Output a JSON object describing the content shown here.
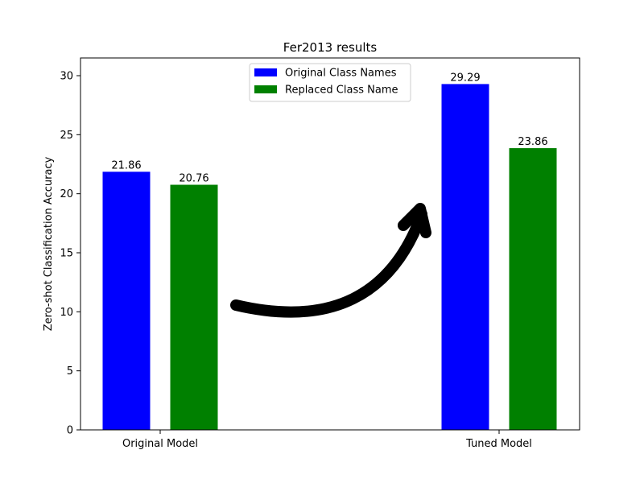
{
  "chart_data": {
    "type": "bar",
    "title": "Fer2013 results",
    "xlabel": "",
    "ylabel": "Zero-shot Classification Accuracy",
    "categories": [
      "Original Model",
      "Tuned Model"
    ],
    "series": [
      {
        "name": "Original Class Names",
        "values": [
          21.86,
          29.29
        ],
        "labels": [
          "21.86",
          "29.29"
        ],
        "color": "#0000ff"
      },
      {
        "name": "Replaced Class Name",
        "values": [
          20.76,
          23.86
        ],
        "labels": [
          "20.76",
          "23.86"
        ],
        "color": "#008000"
      }
    ],
    "ylim": [
      0,
      30
    ],
    "yticks": [
      0,
      5,
      10,
      15,
      20,
      25,
      30
    ],
    "ytick_labels": [
      "0",
      "5",
      "10",
      "15",
      "20",
      "25",
      "30"
    ],
    "grid": false,
    "legend": "upper-center",
    "annotation": "curved black arrow pointing from Original Model toward Tuned Model"
  }
}
